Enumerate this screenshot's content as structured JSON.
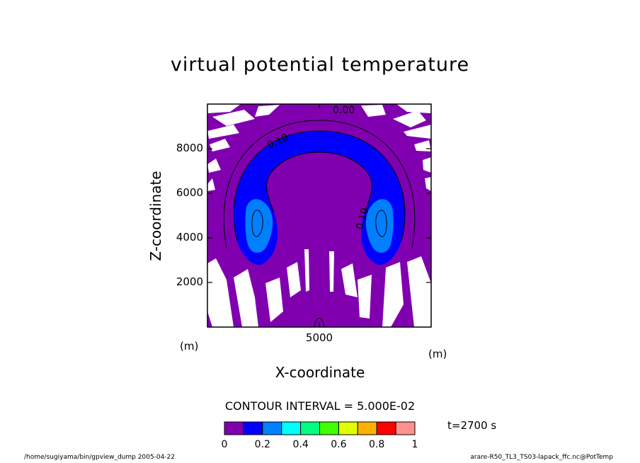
{
  "chart_data": {
    "type": "heatmap",
    "title": "virtual potential temperature",
    "xlabel": "X-coordinate",
    "ylabel": "Z-coordinate",
    "x_unit": "(m)",
    "y_unit": "(m)",
    "xlim": [
      0,
      10000
    ],
    "ylim": [
      0,
      10000
    ],
    "x_ticks": [
      5000
    ],
    "y_ticks": [
      2000,
      4000,
      6000,
      8000
    ],
    "contour_labels": [
      "0.00",
      "0.10",
      "0.10"
    ],
    "contour_interval": "CONTOUR INTERVAL = 5.000E-02",
    "colorbar": {
      "min": 0,
      "max": 1,
      "ticks": [
        "0",
        "0.2",
        "0.4",
        "0.6",
        "0.8",
        "1"
      ],
      "colors": [
        "#8000b0",
        "#0000ff",
        "#0080ff",
        "#00ffff",
        "#00ff80",
        "#40ff00",
        "#e0ff00",
        "#ffb000",
        "#ff0000",
        "#ff9090"
      ]
    },
    "time": "t=2700 s"
  },
  "footer": {
    "left": "/home/sugiyama/bin/gpview_dump  2005-04-22",
    "right": "arare-R50_TL3_TS03-lapack_ffc.nc@PotTemp"
  }
}
